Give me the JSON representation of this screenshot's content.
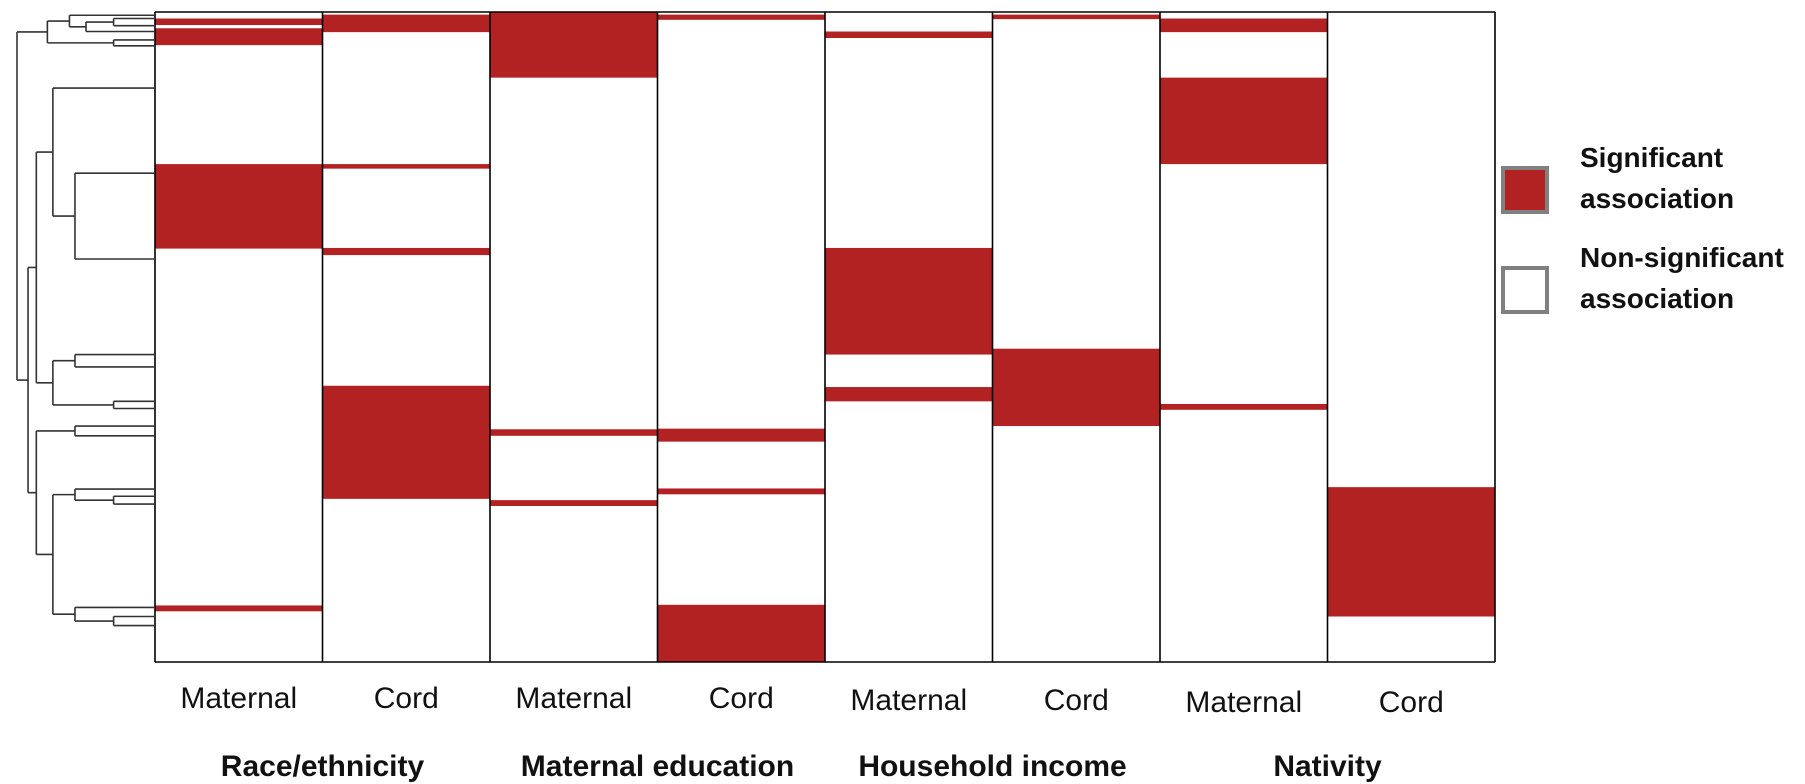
{
  "chart_data": {
    "type": "heatmap",
    "title": "",
    "row_count": 1.0,
    "colors": {
      "significant": "#b22222",
      "non_significant": "#ffffff",
      "border": "#000000",
      "dendrogram": "#333333",
      "legend_border": "#808080"
    },
    "groups": [
      {
        "label": "Race/ethnicity",
        "columns": [
          "Maternal",
          "Cord"
        ]
      },
      {
        "label": "Maternal education",
        "columns": [
          "Maternal",
          "Cord"
        ]
      },
      {
        "label": "Household income",
        "columns": [
          "Maternal",
          "Cord"
        ]
      },
      {
        "label": "Nativity",
        "columns": [
          "Maternal",
          "Cord"
        ]
      }
    ],
    "columns": [
      {
        "group": "Race/ethnicity",
        "label": "Maternal",
        "significant_intervals": [
          [
            0.01,
            0.02
          ],
          [
            0.025,
            0.051
          ],
          [
            0.234,
            0.364
          ],
          [
            0.913,
            0.922
          ]
        ]
      },
      {
        "group": "Race/ethnicity",
        "label": "Cord",
        "significant_intervals": [
          [
            0.004,
            0.031
          ],
          [
            0.234,
            0.241
          ],
          [
            0.363,
            0.374
          ],
          [
            0.575,
            0.749
          ]
        ]
      },
      {
        "group": "Maternal education",
        "label": "Maternal",
        "significant_intervals": [
          [
            0.0,
            0.101
          ],
          [
            0.642,
            0.652
          ],
          [
            0.751,
            0.76
          ]
        ]
      },
      {
        "group": "Maternal education",
        "label": "Cord",
        "significant_intervals": [
          [
            0.004,
            0.012
          ],
          [
            0.641,
            0.661
          ],
          [
            0.733,
            0.742
          ],
          [
            0.912,
            1.0
          ]
        ]
      },
      {
        "group": "Household income",
        "label": "Maternal",
        "significant_intervals": [
          [
            0.03,
            0.04
          ],
          [
            0.363,
            0.527
          ],
          [
            0.577,
            0.599
          ]
        ]
      },
      {
        "group": "Household income",
        "label": "Cord",
        "significant_intervals": [
          [
            0.004,
            0.011
          ],
          [
            0.518,
            0.637
          ]
        ]
      },
      {
        "group": "Nativity",
        "label": "Maternal",
        "significant_intervals": [
          [
            0.01,
            0.031
          ],
          [
            0.101,
            0.234
          ],
          [
            0.603,
            0.612
          ]
        ]
      },
      {
        "group": "Nativity",
        "label": "Cord",
        "significant_intervals": [
          [
            0.731,
            0.93
          ]
        ]
      }
    ],
    "legend": {
      "placement": "right",
      "items": [
        {
          "key": "significant",
          "lines": [
            "Significant",
            "association"
          ]
        },
        {
          "key": "non_significant",
          "lines": [
            "Non-significant",
            "association"
          ]
        }
      ]
    },
    "dendrogram": {
      "nodes": [
        {
          "id": "L1",
          "y": 0.005
        },
        {
          "id": "L2",
          "y": 0.01
        },
        {
          "id": "L3",
          "y": 0.021
        },
        {
          "id": "L4",
          "y": 0.03
        },
        {
          "id": "L5",
          "y": 0.043
        },
        {
          "id": "L6",
          "y": 0.052
        },
        {
          "id": "L7",
          "y": 0.117
        },
        {
          "id": "L8",
          "y": 0.248
        },
        {
          "id": "L9",
          "y": 0.38
        },
        {
          "id": "L10",
          "y": 0.527
        },
        {
          "id": "L11",
          "y": 0.546
        },
        {
          "id": "L12",
          "y": 0.599
        },
        {
          "id": "L13",
          "y": 0.61
        },
        {
          "id": "L14",
          "y": 0.637
        },
        {
          "id": "L15",
          "y": 0.652
        },
        {
          "id": "L16",
          "y": 0.734
        },
        {
          "id": "L17",
          "y": 0.745
        },
        {
          "id": "L18",
          "y": 0.757
        },
        {
          "id": "L19",
          "y": 0.916
        },
        {
          "id": "L20",
          "y": 0.93
        },
        {
          "id": "L21",
          "y": 0.944
        }
      ],
      "merges": [
        {
          "id": "A",
          "children": [
            "L2",
            "L3"
          ],
          "height": 0.3
        },
        {
          "id": "B",
          "children": [
            "A",
            "L4"
          ],
          "height": 0.5
        },
        {
          "id": "C",
          "children": [
            "B",
            "L1"
          ],
          "height": 0.62
        },
        {
          "id": "D",
          "children": [
            "L5",
            "L6"
          ],
          "height": 0.3
        },
        {
          "id": "E",
          "children": [
            "C",
            "D"
          ],
          "height": 0.78
        },
        {
          "id": "F",
          "children": [
            "L8",
            "L9"
          ],
          "height": 0.58
        },
        {
          "id": "G",
          "children": [
            "L7",
            "F"
          ],
          "height": 0.74
        },
        {
          "id": "H",
          "children": [
            "L12",
            "L13"
          ],
          "height": 0.3
        },
        {
          "id": "I",
          "children": [
            "L10",
            "L11"
          ],
          "height": 0.58
        },
        {
          "id": "J",
          "children": [
            "I",
            "H"
          ],
          "height": 0.74
        },
        {
          "id": "K",
          "children": [
            "G",
            "J"
          ],
          "height": 0.86
        },
        {
          "id": "L",
          "children": [
            "L14",
            "L15"
          ],
          "height": 0.58
        },
        {
          "id": "M",
          "children": [
            "L17",
            "L18"
          ],
          "height": 0.3
        },
        {
          "id": "N",
          "children": [
            "L16",
            "M"
          ],
          "height": 0.58
        },
        {
          "id": "O",
          "children": [
            "L20",
            "L21"
          ],
          "height": 0.3
        },
        {
          "id": "P",
          "children": [
            "L19",
            "O"
          ],
          "height": 0.58
        },
        {
          "id": "Q",
          "children": [
            "N",
            "P"
          ],
          "height": 0.74
        },
        {
          "id": "R",
          "children": [
            "L",
            "Q"
          ],
          "height": 0.86
        },
        {
          "id": "S",
          "children": [
            "K",
            "R"
          ],
          "height": 0.92
        },
        {
          "id": "T",
          "children": [
            "E",
            "S"
          ],
          "height": 1.0
        }
      ]
    }
  }
}
